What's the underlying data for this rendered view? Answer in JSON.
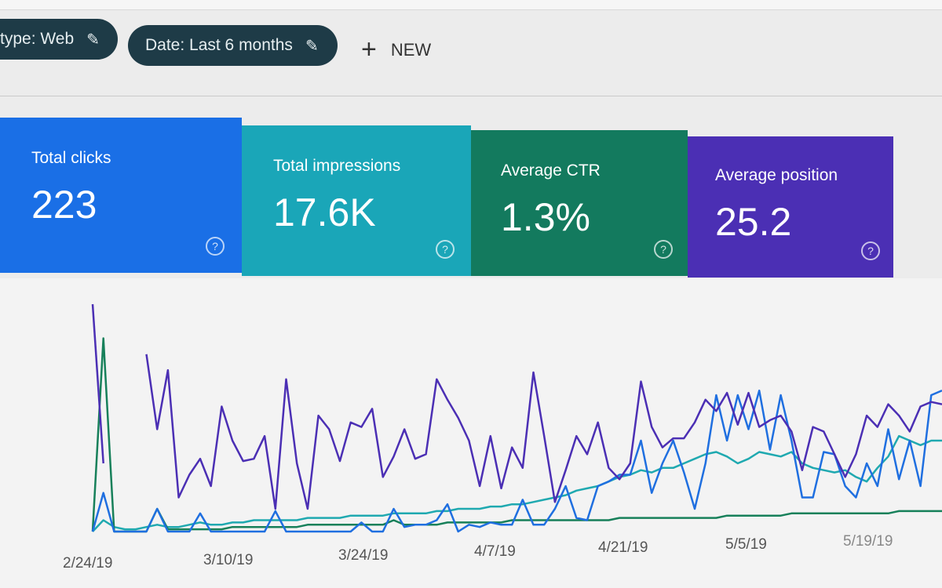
{
  "filters": [
    {
      "label": "type: Web"
    },
    {
      "label": "Date: Last 6 months"
    }
  ],
  "new_button": {
    "label": "NEW"
  },
  "metrics": [
    {
      "label": "Total clicks",
      "value": "223",
      "color": "#1a6fe6"
    },
    {
      "label": "Total impressions",
      "value": "17.6K",
      "color": "#1aa6b8"
    },
    {
      "label": "Average CTR",
      "value": "1.3%",
      "color": "#137a5e"
    },
    {
      "label": "Average position",
      "value": "25.2",
      "color": "#4b2fb4"
    }
  ],
  "chart_data": {
    "type": "line",
    "xlabel": "",
    "ylabel": "",
    "ylim": [
      0,
      100
    ],
    "x_tick_labels": [
      "2/24/19",
      "3/10/19",
      "3/24/19",
      "4/7/19",
      "4/21/19",
      "5/5/19",
      "5/19/19"
    ],
    "points_per_series": 80,
    "series": [
      {
        "name": "Average position",
        "color": "#4b2fb4",
        "values": [
          100,
          30,
          null,
          null,
          null,
          78,
          45,
          71,
          15,
          25,
          32,
          20,
          55,
          40,
          31,
          32,
          42,
          10,
          67,
          30,
          10,
          51,
          45,
          31,
          48,
          46,
          54,
          24,
          33,
          45,
          32,
          34,
          67,
          58,
          50,
          40,
          20,
          42,
          19,
          37,
          28,
          70,
          42,
          13,
          27,
          42,
          34,
          48,
          28,
          23,
          30,
          66,
          46,
          37,
          41,
          41,
          48,
          58,
          53,
          61,
          47,
          61,
          46,
          49,
          51,
          44,
          27,
          46,
          44,
          34,
          24,
          34,
          51,
          46,
          56,
          51,
          44,
          55,
          57,
          56
        ]
      },
      {
        "name": "Total clicks",
        "color": "#1f6fe0",
        "values": [
          0,
          17,
          0,
          0,
          0,
          0,
          10,
          0,
          0,
          0,
          8,
          0,
          0,
          0,
          0,
          0,
          0,
          9,
          0,
          0,
          0,
          0,
          0,
          0,
          0,
          4,
          0,
          0,
          10,
          2,
          3,
          3,
          5,
          12,
          0,
          3,
          2,
          4,
          3,
          3,
          14,
          3,
          3,
          10,
          20,
          6,
          5,
          20,
          22,
          25,
          25,
          40,
          17,
          30,
          40,
          26,
          10,
          30,
          60,
          40,
          60,
          45,
          62,
          36,
          60,
          40,
          15,
          15,
          35,
          34,
          20,
          15,
          30,
          20,
          45,
          23,
          40,
          20,
          60,
          62
        ]
      },
      {
        "name": "Total impressions",
        "color": "#1fa9b0",
        "values": [
          0,
          5,
          2,
          1,
          1,
          2,
          3,
          2,
          2,
          3,
          4,
          3,
          3,
          4,
          4,
          5,
          5,
          5,
          5,
          5,
          6,
          6,
          6,
          6,
          7,
          7,
          7,
          7,
          8,
          8,
          8,
          8,
          9,
          9,
          10,
          10,
          10,
          11,
          11,
          12,
          12,
          13,
          14,
          15,
          16,
          18,
          19,
          20,
          22,
          24,
          25,
          27,
          26,
          28,
          28,
          30,
          32,
          34,
          35,
          33,
          30,
          32,
          35,
          34,
          33,
          35,
          30,
          28,
          27,
          26,
          27,
          24,
          22,
          28,
          33,
          42,
          40,
          38,
          40,
          40
        ]
      },
      {
        "name": "Average CTR",
        "color": "#17805a",
        "values": [
          0,
          85,
          0,
          0,
          0,
          0,
          10,
          1,
          1,
          1,
          1,
          1,
          1,
          2,
          2,
          2,
          2,
          2,
          2,
          2,
          3,
          3,
          3,
          3,
          3,
          3,
          3,
          3,
          5,
          3,
          3,
          3,
          3,
          4,
          4,
          4,
          4,
          4,
          4,
          5,
          5,
          5,
          5,
          5,
          5,
          5,
          5,
          5,
          5,
          6,
          6,
          6,
          6,
          6,
          6,
          6,
          6,
          6,
          6,
          7,
          7,
          7,
          7,
          7,
          7,
          8,
          8,
          8,
          8,
          8,
          8,
          8,
          8,
          8,
          8,
          9,
          9,
          9,
          9,
          9
        ]
      }
    ]
  }
}
